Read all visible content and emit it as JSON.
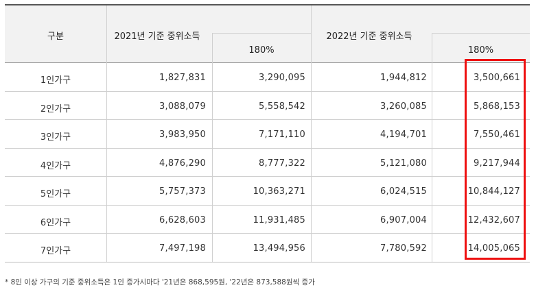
{
  "header": {
    "group": "구분",
    "year2021": "2021년 기준 중위소득",
    "year2022": "2022년 기준 중위소득",
    "pct2021": "180%",
    "pct2022": "180%"
  },
  "rows": [
    {
      "label": "1인가구",
      "v2021": "1,827,831",
      "p2021": "3,290,095",
      "v2022": "1,944,812",
      "p2022": "3,500,661"
    },
    {
      "label": "2인가구",
      "v2021": "3,088,079",
      "p2021": "5,558,542",
      "v2022": "3,260,085",
      "p2022": "5,868,153"
    },
    {
      "label": "3인가구",
      "v2021": "3,983,950",
      "p2021": "7,171,110",
      "v2022": "4,194,701",
      "p2022": "7,550,461"
    },
    {
      "label": "4인가구",
      "v2021": "4,876,290",
      "p2021": "8,777,322",
      "v2022": "5,121,080",
      "p2022": "9,217,944"
    },
    {
      "label": "5인가구",
      "v2021": "5,757,373",
      "p2021": "10,363,271",
      "v2022": "6,024,515",
      "p2022": "10,844,127"
    },
    {
      "label": "6인가구",
      "v2021": "6,628,603",
      "p2021": "11,931,485",
      "v2022": "6,907,004",
      "p2022": "12,432,607"
    },
    {
      "label": "7인가구",
      "v2021": "7,497,198",
      "p2021": "13,494,956",
      "v2022": "7,780,592",
      "p2022": "14,005,065"
    }
  ],
  "footnote": "* 8인 이상 가구의 기준 중위소득은 1인 증가시마다 '21년은 868,595원, '22년은 873,588원씩 증가",
  "colors": {
    "highlight": "#ee1111",
    "header_bg": "#f2f2f2"
  }
}
